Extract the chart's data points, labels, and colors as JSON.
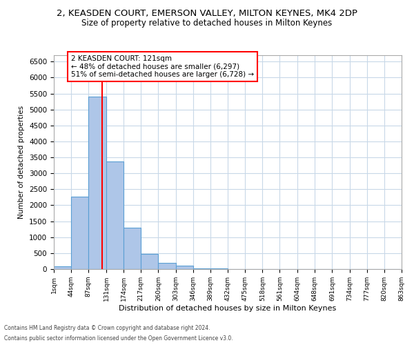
{
  "title1": "2, KEASDEN COURT, EMERSON VALLEY, MILTON KEYNES, MK4 2DP",
  "title2": "Size of property relative to detached houses in Milton Keynes",
  "xlabel": "Distribution of detached houses by size in Milton Keynes",
  "ylabel": "Number of detached properties",
  "annotation_line1": "2 KEASDEN COURT: 121sqm",
  "annotation_line2": "← 48% of detached houses are smaller (6,297)",
  "annotation_line3": "51% of semi-detached houses are larger (6,728) →",
  "footer1": "Contains HM Land Registry data © Crown copyright and database right 2024.",
  "footer2": "Contains public sector information licensed under the Open Government Licence v3.0.",
  "bin_edges": [
    1,
    44,
    87,
    131,
    174,
    217,
    260,
    303,
    346,
    389,
    432,
    475,
    518,
    561,
    604,
    648,
    691,
    734,
    777,
    820,
    863
  ],
  "bar_heights": [
    80,
    2280,
    5400,
    3380,
    1300,
    480,
    190,
    100,
    30,
    15,
    8,
    4,
    2,
    1,
    1,
    0,
    0,
    0,
    0,
    0
  ],
  "bar_color": "#aec6e8",
  "bar_edge_color": "#5a9fd4",
  "red_line_x": 121,
  "ylim": [
    0,
    6700
  ],
  "yticks": [
    0,
    500,
    1000,
    1500,
    2000,
    2500,
    3000,
    3500,
    4000,
    4500,
    5000,
    5500,
    6000,
    6500
  ],
  "background_color": "#ffffff",
  "grid_color": "#c8d8e8",
  "title1_fontsize": 9.5,
  "title2_fontsize": 8.5,
  "annotation_fontsize": 7.5
}
